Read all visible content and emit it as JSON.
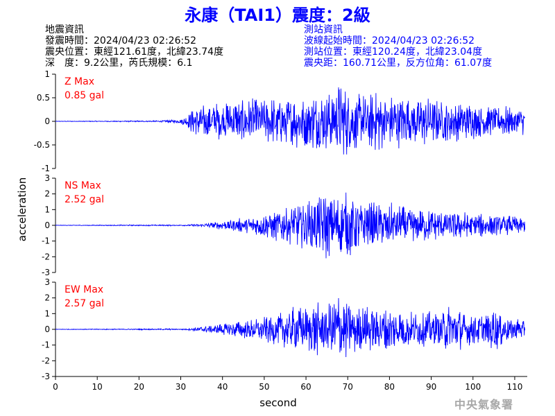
{
  "title": "永康（TAI1）震度：2級",
  "quake_info": {
    "heading": "地震資訊",
    "origin_time": "發震時間：2024/04/23 02:26:52",
    "epicenter": "震央位置：東經121.61度，北緯23.74度",
    "depth_magnitude": "深　度：9.2公里，芮氏規模：6.1"
  },
  "station_info": {
    "heading": "測站資訊",
    "wave_start": "波線起始時間：2024/04/23 02:26:52",
    "location": "測站位置：東經120.24度，北緯23.04度",
    "distance": "震央距：160.71公里，反方位角：61.07度"
  },
  "watermark": "中央氣象署",
  "colors": {
    "title": "#0000ff",
    "trace": "#0000ff",
    "max_label": "#ff0000",
    "station": "#0000ff"
  },
  "chart_data": {
    "type": "line",
    "xlabel": "second",
    "ylabel": "acceleration",
    "xlim": [
      0,
      113
    ],
    "xticks": [
      0,
      10,
      20,
      30,
      40,
      50,
      60,
      70,
      80,
      90,
      100,
      110
    ],
    "panels": [
      {
        "name": "Z",
        "max_label": "Z Max",
        "max_value": "0.85 gal",
        "ylim": [
          -1,
          1
        ],
        "yticks": [
          -1,
          -0.5,
          0,
          0.5,
          1
        ],
        "ytick_labels": [
          "-1",
          "-0.5",
          "0",
          "0.5",
          "1"
        ],
        "x": [
          0,
          25,
          28,
          30,
          31,
          32,
          33,
          35,
          38,
          40,
          42,
          45,
          48,
          50,
          52,
          55,
          58,
          60,
          62,
          65,
          68,
          70,
          72,
          75,
          78,
          80,
          82,
          85,
          88,
          90,
          92,
          95,
          98,
          100,
          103,
          105,
          108,
          110,
          112.5
        ],
        "y": [
          0,
          0.01,
          -0.03,
          0.05,
          -0.1,
          0.2,
          -0.3,
          0.35,
          -0.45,
          0.4,
          -0.45,
          0.5,
          -0.5,
          0.45,
          -0.55,
          0.5,
          -0.6,
          0.55,
          -0.65,
          0.6,
          -0.85,
          0.75,
          -0.65,
          0.6,
          -0.7,
          0.55,
          -0.6,
          0.5,
          -0.55,
          0.5,
          -0.45,
          0.45,
          -0.4,
          0.4,
          -0.35,
          0.3,
          -0.35,
          0.3,
          -0.3
        ]
      },
      {
        "name": "NS",
        "max_label": "NS Max",
        "max_value": "2.52 gal",
        "ylim": [
          -3,
          3
        ],
        "yticks": [
          -3,
          -2,
          -1,
          0,
          1,
          2,
          3
        ],
        "ytick_labels": [
          "-3",
          "-2",
          "-1",
          "0",
          "1",
          "2",
          "3"
        ],
        "x": [
          0,
          30,
          35,
          38,
          40,
          42,
          45,
          48,
          50,
          52,
          55,
          58,
          60,
          62,
          64,
          65,
          66,
          68,
          70,
          72,
          74,
          76,
          78,
          80,
          82,
          85,
          88,
          90,
          92,
          95,
          98,
          100,
          103,
          105,
          108,
          110,
          112.5
        ],
        "y": [
          0,
          0.03,
          -0.1,
          0.2,
          -0.3,
          0.4,
          -0.5,
          0.6,
          -0.8,
          1.0,
          -1.2,
          1.4,
          -1.6,
          1.8,
          -2.2,
          2.4,
          -1.8,
          2.0,
          -2.2,
          1.8,
          -1.6,
          1.6,
          -1.4,
          1.5,
          -1.3,
          1.2,
          -1.1,
          1.0,
          -1.0,
          0.9,
          -0.9,
          0.8,
          -0.8,
          0.7,
          -0.7,
          0.6,
          0.5
        ]
      },
      {
        "name": "EW",
        "max_label": "EW Max",
        "max_value": "2.57 gal",
        "ylim": [
          -3,
          3
        ],
        "yticks": [
          -3,
          -2,
          -1,
          0,
          1,
          2,
          3
        ],
        "ytick_labels": [
          "-3",
          "-2",
          "-1",
          "0",
          "1",
          "2",
          "3"
        ],
        "x": [
          0,
          30,
          33,
          35,
          38,
          40,
          42,
          45,
          48,
          50,
          52,
          55,
          58,
          60,
          62,
          65,
          68,
          70,
          72,
          75,
          78,
          80,
          82,
          85,
          88,
          90,
          92,
          95,
          98,
          100,
          103,
          105,
          108,
          110,
          112.5
        ],
        "y": [
          0,
          0.03,
          -0.1,
          0.2,
          -0.3,
          0.4,
          -0.5,
          0.6,
          -0.7,
          0.9,
          -1.0,
          1.2,
          -1.6,
          1.4,
          -1.8,
          1.6,
          -2.57,
          1.8,
          -1.6,
          1.5,
          -1.4,
          1.6,
          -1.3,
          1.2,
          -1.1,
          1.3,
          -1.0,
          1.8,
          -1.1,
          1.0,
          -1.0,
          1.6,
          -0.9,
          0.8,
          -0.6
        ]
      }
    ]
  }
}
